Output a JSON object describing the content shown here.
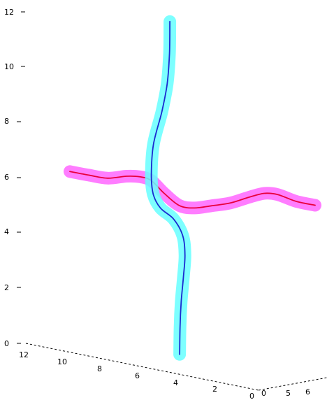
{
  "chart_data": {
    "type": "line",
    "title": "",
    "zlabel": "",
    "xlabel": "",
    "ylabel": "",
    "grid": false,
    "legend": "none",
    "zlim": [
      0,
      12
    ],
    "z_ticks": [
      "0",
      "2",
      "4",
      "6",
      "8",
      "10",
      "12"
    ],
    "x_ticks": [
      "12",
      "10",
      "8",
      "6",
      "4",
      "2",
      "0"
    ],
    "y_ticks": [
      "0",
      "5",
      "6"
    ],
    "series": [
      {
        "glow_color": "#ff66ff",
        "line_color": "#e8003c",
        "points": [
          [
            0.0,
            6.22
          ],
          [
            1.0,
            6.09
          ],
          [
            2.0,
            5.98
          ],
          [
            3.0,
            6.05
          ],
          [
            3.7,
            6.03
          ],
          [
            4.3,
            5.9
          ],
          [
            5.0,
            5.43
          ],
          [
            5.8,
            4.99
          ],
          [
            6.6,
            4.9
          ],
          [
            7.5,
            4.98
          ],
          [
            8.5,
            5.08
          ],
          [
            9.5,
            5.29
          ],
          [
            10.3,
            5.43
          ],
          [
            11.0,
            5.39
          ],
          [
            12.0,
            5.14
          ],
          [
            13.0,
            5.0
          ]
        ]
      },
      {
        "glow_color": "#66ffff",
        "line_color": "#1a2bd1",
        "points": [
          [
            5.82,
            -0.4
          ],
          [
            5.84,
            0.6
          ],
          [
            5.9,
            1.5
          ],
          [
            6.02,
            2.4
          ],
          [
            6.1,
            3.2
          ],
          [
            5.98,
            3.9
          ],
          [
            5.5,
            4.5
          ],
          [
            4.8,
            4.9
          ],
          [
            4.42,
            5.4
          ],
          [
            4.32,
            6.1
          ],
          [
            4.43,
            7.2
          ],
          [
            4.88,
            8.4
          ],
          [
            5.16,
            9.4
          ],
          [
            5.28,
            10.5
          ],
          [
            5.3,
            11.65
          ]
        ]
      }
    ]
  }
}
